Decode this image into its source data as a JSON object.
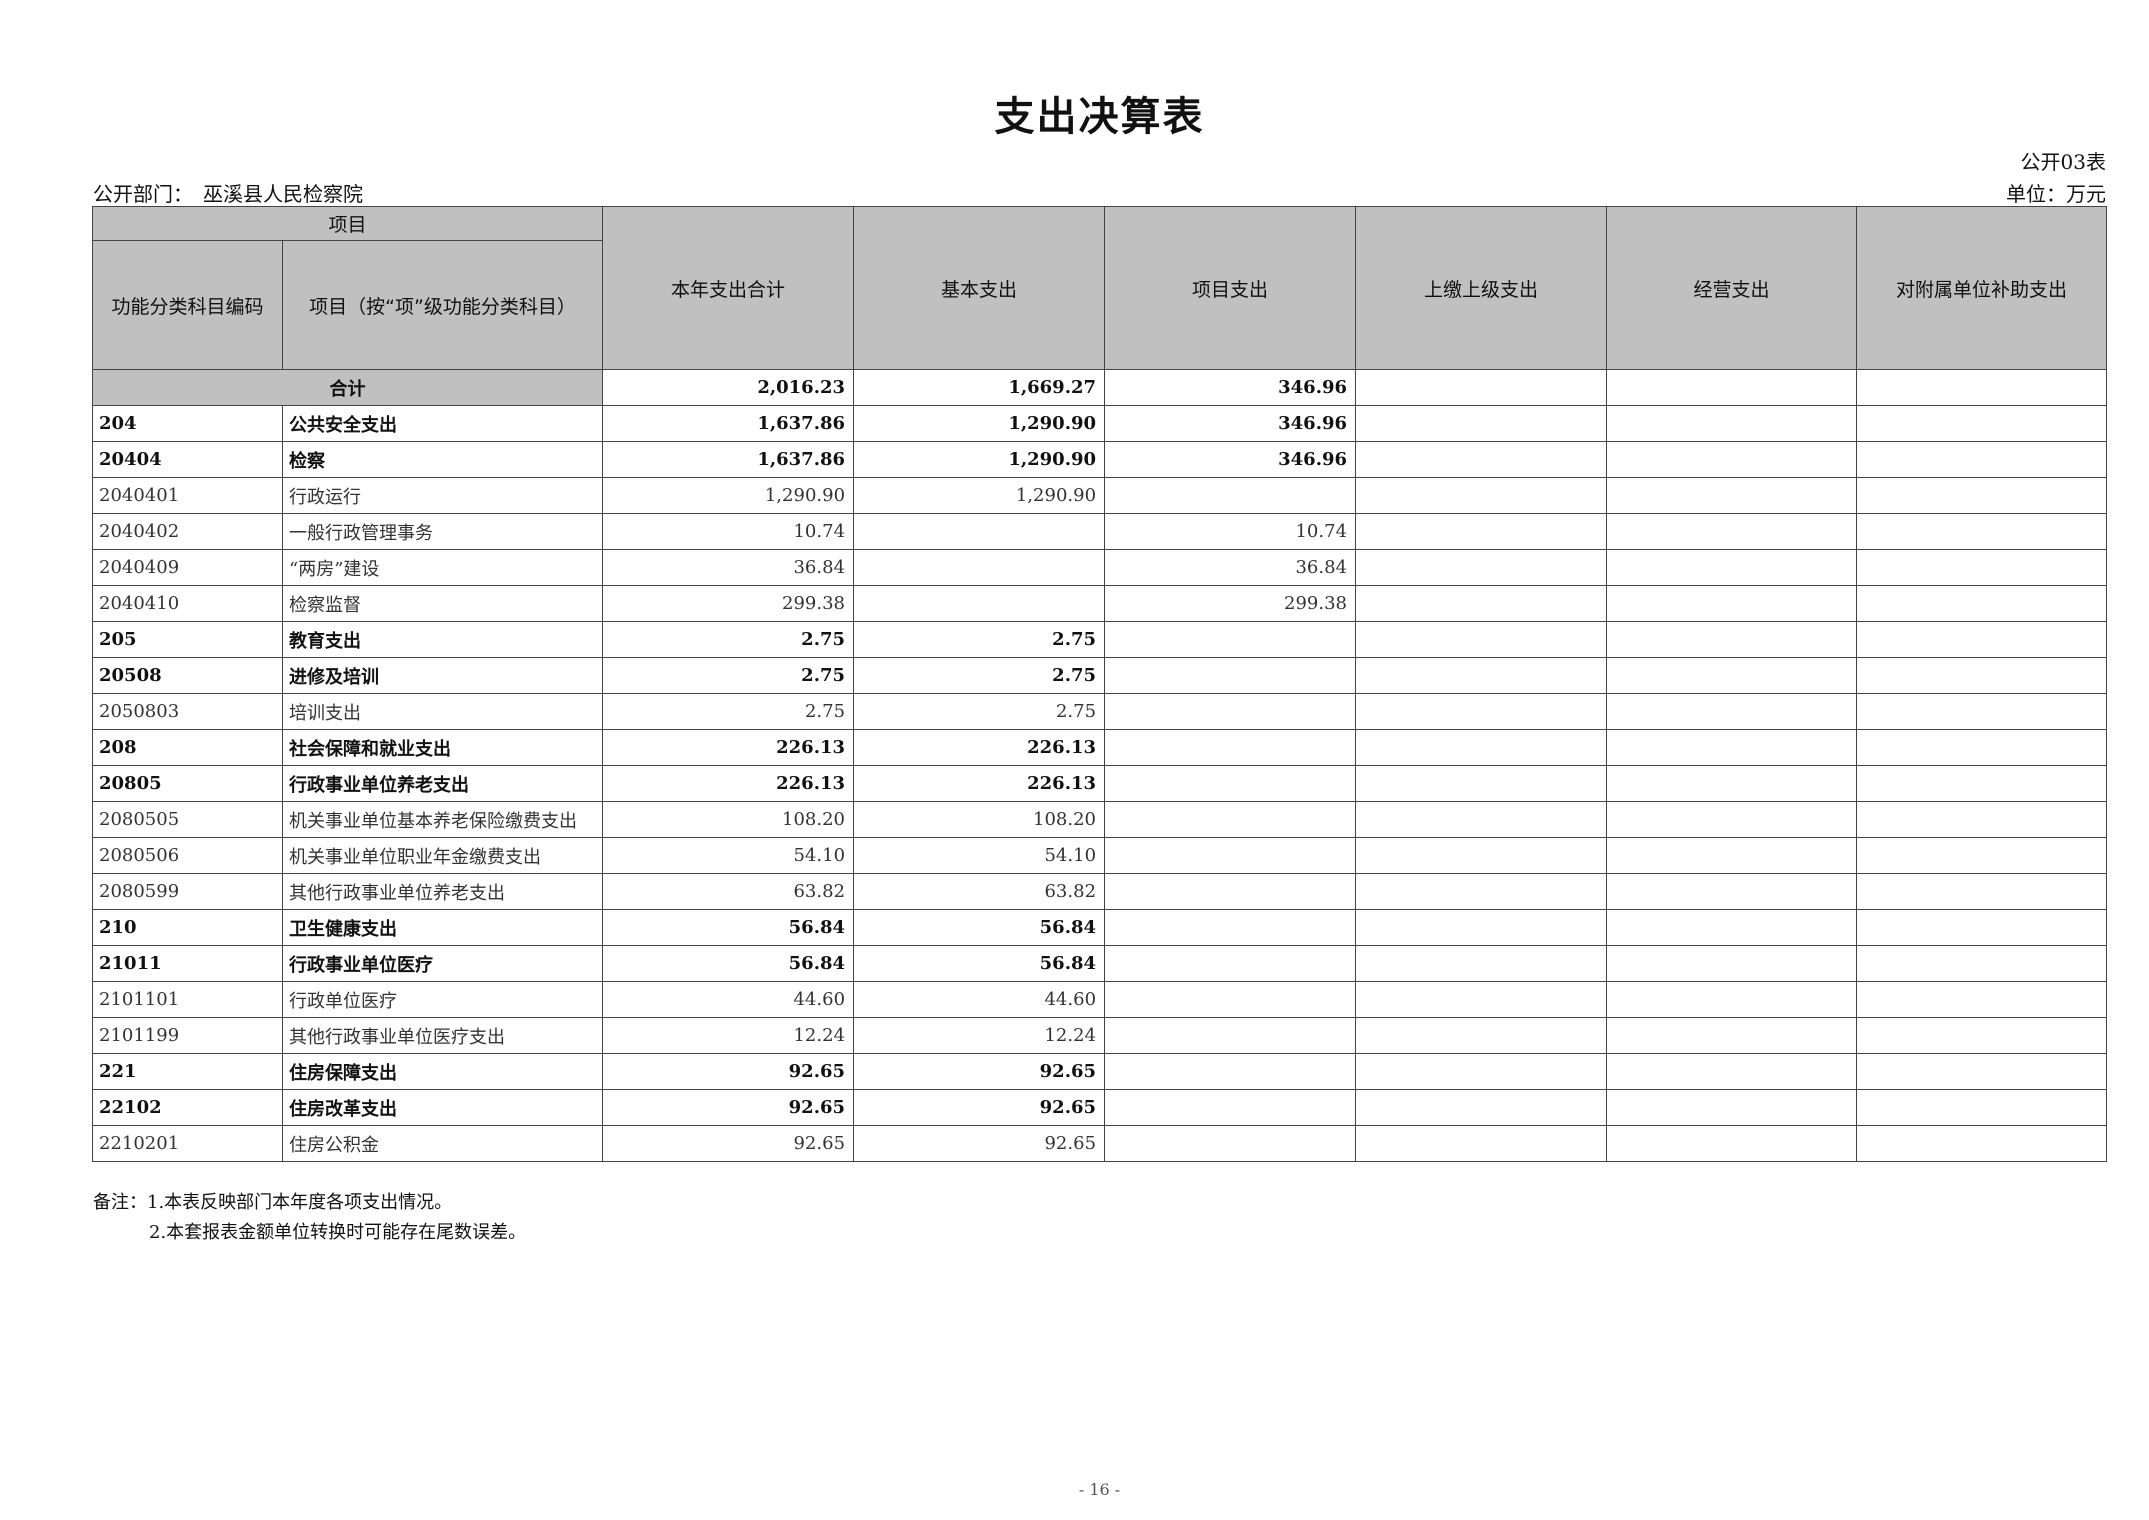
{
  "title": "支出决算表",
  "form_no": "公开03表",
  "dept_label": "公开部门：　巫溪县人民检察院",
  "unit_label": "单位：万元",
  "headers": {
    "item_group": "项目",
    "code": "功能分类科目编码",
    "name": "项目（按“项”级功能分类科目）",
    "cols": [
      "本年支出合计",
      "基本支出",
      "项目支出",
      "上缴上级支出",
      "经营支出",
      "对附属单位补助支出"
    ]
  },
  "total": {
    "label": "合计",
    "values": [
      "2,016.23",
      "1,669.27",
      "346.96",
      "",
      "",
      ""
    ]
  },
  "rows": [
    {
      "code": "204",
      "name": "公共安全支出",
      "bold": true,
      "values": [
        "1,637.86",
        "1,290.90",
        "346.96",
        "",
        "",
        ""
      ]
    },
    {
      "code": "20404",
      "name": "检察",
      "bold": true,
      "values": [
        "1,637.86",
        "1,290.90",
        "346.96",
        "",
        "",
        ""
      ]
    },
    {
      "code": "2040401",
      "name": "行政运行",
      "bold": false,
      "values": [
        "1,290.90",
        "1,290.90",
        "",
        "",
        "",
        ""
      ]
    },
    {
      "code": "2040402",
      "name": "一般行政管理事务",
      "bold": false,
      "values": [
        "10.74",
        "",
        "10.74",
        "",
        "",
        ""
      ]
    },
    {
      "code": "2040409",
      "name": "“两房”建设",
      "bold": false,
      "values": [
        "36.84",
        "",
        "36.84",
        "",
        "",
        ""
      ]
    },
    {
      "code": "2040410",
      "name": "检察监督",
      "bold": false,
      "values": [
        "299.38",
        "",
        "299.38",
        "",
        "",
        ""
      ]
    },
    {
      "code": "205",
      "name": "教育支出",
      "bold": true,
      "values": [
        "2.75",
        "2.75",
        "",
        "",
        "",
        ""
      ]
    },
    {
      "code": "20508",
      "name": "进修及培训",
      "bold": true,
      "values": [
        "2.75",
        "2.75",
        "",
        "",
        "",
        ""
      ]
    },
    {
      "code": "2050803",
      "name": "培训支出",
      "bold": false,
      "values": [
        "2.75",
        "2.75",
        "",
        "",
        "",
        ""
      ]
    },
    {
      "code": "208",
      "name": "社会保障和就业支出",
      "bold": true,
      "values": [
        "226.13",
        "226.13",
        "",
        "",
        "",
        ""
      ]
    },
    {
      "code": "20805",
      "name": "行政事业单位养老支出",
      "bold": true,
      "values": [
        "226.13",
        "226.13",
        "",
        "",
        "",
        ""
      ]
    },
    {
      "code": "2080505",
      "name": "机关事业单位基本养老保险缴费支出",
      "bold": false,
      "values": [
        "108.20",
        "108.20",
        "",
        "",
        "",
        ""
      ]
    },
    {
      "code": "2080506",
      "name": "机关事业单位职业年金缴费支出",
      "bold": false,
      "values": [
        "54.10",
        "54.10",
        "",
        "",
        "",
        ""
      ]
    },
    {
      "code": "2080599",
      "name": "其他行政事业单位养老支出",
      "bold": false,
      "values": [
        "63.82",
        "63.82",
        "",
        "",
        "",
        ""
      ]
    },
    {
      "code": "210",
      "name": "卫生健康支出",
      "bold": true,
      "values": [
        "56.84",
        "56.84",
        "",
        "",
        "",
        ""
      ]
    },
    {
      "code": "21011",
      "name": "行政事业单位医疗",
      "bold": true,
      "values": [
        "56.84",
        "56.84",
        "",
        "",
        "",
        ""
      ]
    },
    {
      "code": "2101101",
      "name": "行政单位医疗",
      "bold": false,
      "values": [
        "44.60",
        "44.60",
        "",
        "",
        "",
        ""
      ]
    },
    {
      "code": "2101199",
      "name": "其他行政事业单位医疗支出",
      "bold": false,
      "values": [
        "12.24",
        "12.24",
        "",
        "",
        "",
        ""
      ]
    },
    {
      "code": "221",
      "name": "住房保障支出",
      "bold": true,
      "values": [
        "92.65",
        "92.65",
        "",
        "",
        "",
        ""
      ]
    },
    {
      "code": "22102",
      "name": "住房改革支出",
      "bold": true,
      "values": [
        "92.65",
        "92.65",
        "",
        "",
        "",
        ""
      ]
    },
    {
      "code": "2210201",
      "name": "住房公积金",
      "bold": false,
      "values": [
        "92.65",
        "92.65",
        "",
        "",
        "",
        ""
      ]
    }
  ],
  "notes": [
    "备注：1.本表反映部门本年度各项支出情况。",
    "2.本套报表金额单位转换时可能存在尾数误差。"
  ],
  "page_number": "- 16 -"
}
